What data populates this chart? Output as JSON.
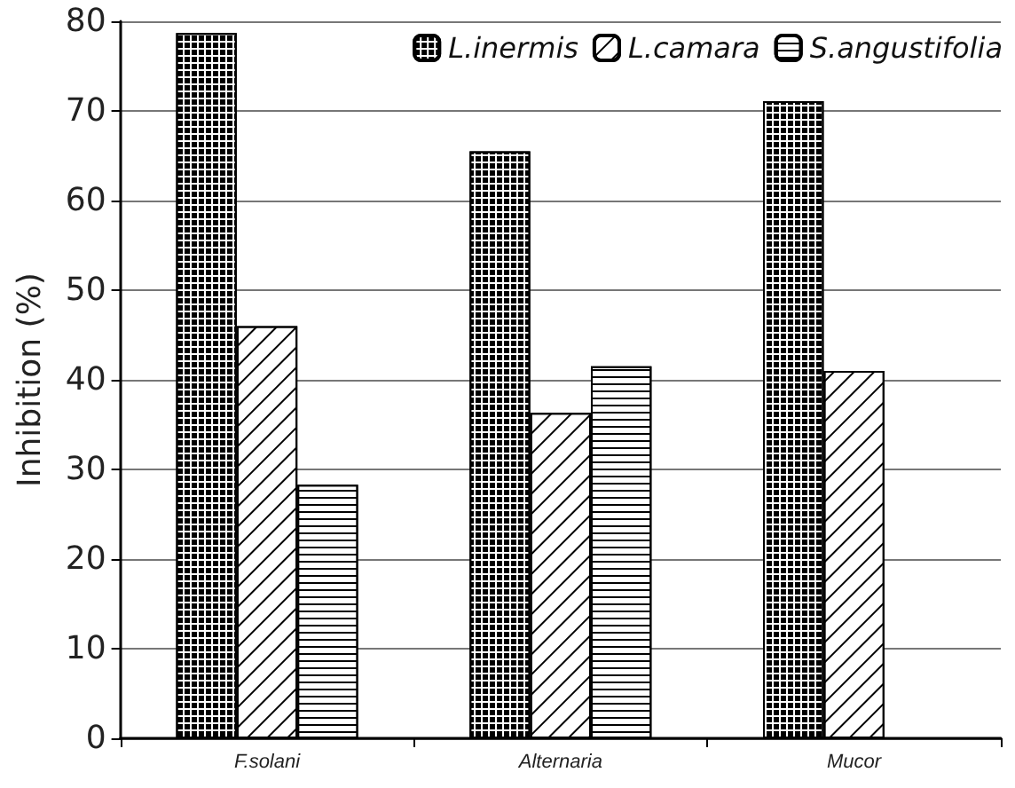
{
  "chart_data": {
    "type": "bar",
    "ylabel": "Inhibition (%)",
    "categories": [
      "F.solani",
      "Alternaria",
      "Mucor"
    ],
    "series": [
      {
        "name": "L.inermis",
        "color": "#ffffff",
        "values": [
          78.7,
          65.5,
          71.1
        ]
      },
      {
        "name": "L.camara",
        "color": "#ffffff",
        "values": [
          46,
          36.3,
          41
        ]
      },
      {
        "name": "S.angustifolia",
        "color": "#ffffff",
        "values": [
          28.3,
          41.5,
          null
        ]
      }
    ],
    "ylim": [
      0,
      80
    ],
    "yticks": [
      0,
      10,
      20,
      30,
      40,
      50,
      60,
      70,
      80
    ],
    "grid": "y",
    "legend": "top right"
  }
}
